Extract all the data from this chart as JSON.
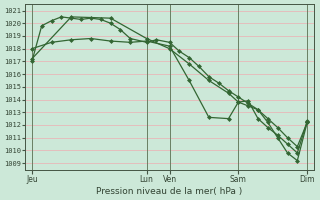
{
  "xlabel": "Pression niveau de la mer( hPa )",
  "ylim": [
    1008.5,
    1021.5
  ],
  "yticks": [
    1009,
    1010,
    1011,
    1012,
    1013,
    1014,
    1015,
    1016,
    1017,
    1018,
    1019,
    1020,
    1021
  ],
  "bg_color": "#cce8d8",
  "grid_color": "#e8b8b8",
  "line_color": "#336633",
  "xtick_positions": [
    0,
    35,
    42,
    63,
    84
  ],
  "xtick_labels": [
    "Jeu",
    "Lun",
    "Ven",
    "Sam",
    "Dim"
  ],
  "vline_positions": [
    0,
    35,
    42,
    63,
    84
  ],
  "series1_x": [
    0,
    3,
    6,
    9,
    12,
    15,
    18,
    21,
    24,
    27,
    30,
    35,
    38,
    42,
    45,
    48,
    51,
    54,
    57,
    60,
    63,
    66,
    69,
    72,
    75,
    78,
    81,
    84
  ],
  "series1_y": [
    1017.0,
    1019.8,
    1020.2,
    1020.5,
    1020.4,
    1020.3,
    1020.4,
    1020.3,
    1020.0,
    1019.5,
    1018.8,
    1018.5,
    1018.7,
    1018.5,
    1017.8,
    1017.3,
    1016.6,
    1015.8,
    1015.3,
    1014.7,
    1014.2,
    1013.7,
    1013.2,
    1012.5,
    1011.8,
    1011.0,
    1010.3,
    1012.2
  ],
  "series2_x": [
    0,
    6,
    12,
    18,
    24,
    30,
    35,
    42,
    48,
    54,
    60,
    63,
    66,
    69,
    72,
    75,
    78,
    81,
    84
  ],
  "series2_y": [
    1018.0,
    1018.5,
    1018.7,
    1018.8,
    1018.6,
    1018.5,
    1018.6,
    1018.2,
    1015.5,
    1012.6,
    1012.5,
    1013.8,
    1013.9,
    1012.5,
    1011.8,
    1011.2,
    1010.5,
    1009.8,
    1012.3
  ],
  "series3_x": [
    0,
    12,
    24,
    35,
    42,
    48,
    54,
    60,
    63,
    66,
    69,
    72,
    75,
    78,
    81,
    84
  ],
  "series3_y": [
    1017.2,
    1020.5,
    1020.4,
    1018.8,
    1018.0,
    1016.8,
    1015.5,
    1014.5,
    1013.8,
    1013.5,
    1013.2,
    1012.2,
    1011.0,
    1009.8,
    1009.2,
    1012.2
  ],
  "figsize": [
    3.2,
    2.0
  ],
  "dpi": 100
}
